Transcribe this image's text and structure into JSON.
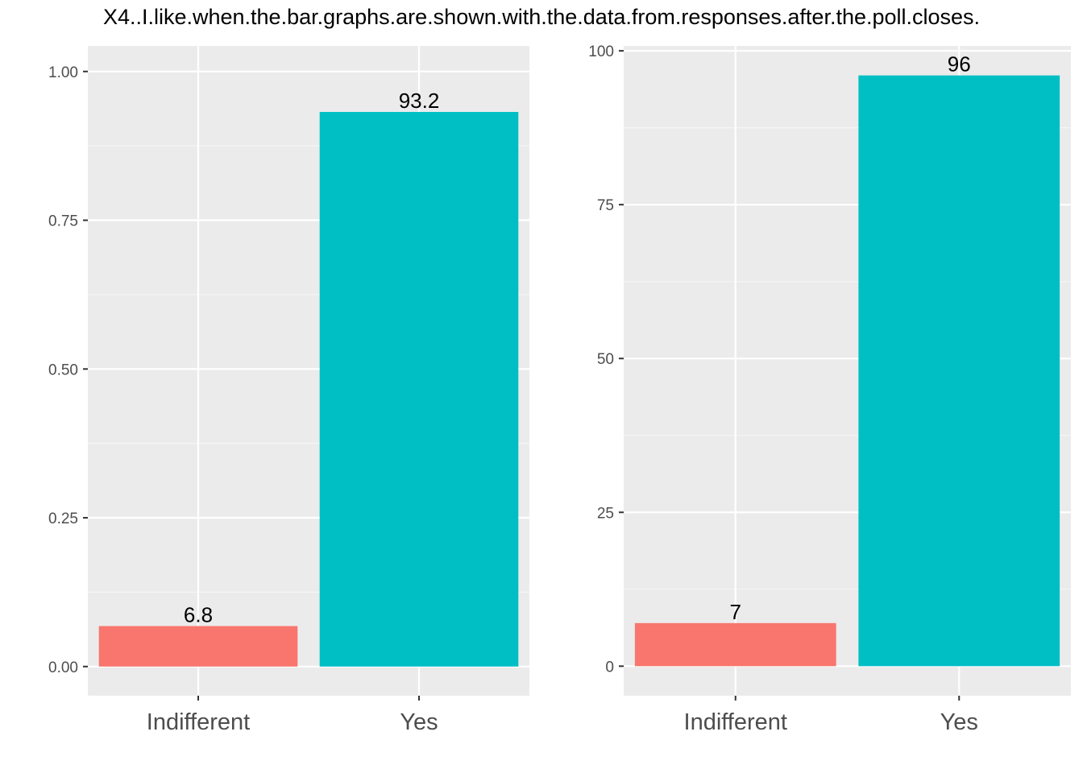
{
  "title": "X4..I.like.when.the.bar.graphs.are.shown.with.the.data.from.responses.after.the.poll.closes.",
  "colors": {
    "panel_background": "#ebebeb",
    "grid_major": "#ffffff",
    "grid_minor": "#f5f5f5",
    "indifferent": "#f8766d",
    "yes": "#00bfc4",
    "axis_text": "#4d4d4d",
    "data_label": "#000000"
  },
  "chart_data": [
    {
      "type": "bar",
      "categories": [
        "Indifferent",
        "Yes"
      ],
      "values": [
        0.068,
        0.932
      ],
      "data_labels": [
        "6.8",
        "93.2"
      ],
      "bar_colors": [
        "#f8766d",
        "#00bfc4"
      ],
      "ylim": [
        -0.049,
        1.043
      ],
      "yticks": [
        0,
        0.25,
        0.5,
        0.75,
        1.0
      ],
      "ytick_labels": [
        "0.00",
        "0.25",
        "0.50",
        "0.75",
        "1.00"
      ],
      "xlabel": "",
      "ylabel": "",
      "grid": true,
      "legend": "none"
    },
    {
      "type": "bar",
      "categories": [
        "Indifferent",
        "Yes"
      ],
      "values": [
        7,
        96
      ],
      "data_labels": [
        "7",
        "96"
      ],
      "bar_colors": [
        "#f8766d",
        "#00bfc4"
      ],
      "ylim": [
        -4.8,
        100.8
      ],
      "yticks": [
        0,
        25,
        50,
        75,
        100
      ],
      "ytick_labels": [
        "0",
        "25",
        "50",
        "75",
        "100"
      ],
      "xlabel": "",
      "ylabel": "",
      "grid": true,
      "legend": "none"
    }
  ]
}
